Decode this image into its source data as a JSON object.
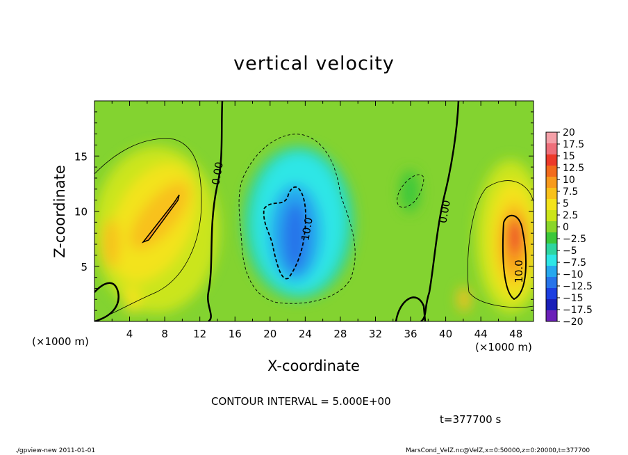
{
  "chart_data": {
    "type": "heatmap",
    "title": "vertical velocity",
    "xlabel": "X-coordinate",
    "ylabel": "Z-coordinate",
    "x_unit_left": "(×1000 m)",
    "x_unit_right": "(×1000 m)",
    "xlim": [
      0,
      50
    ],
    "ylim": [
      0,
      20
    ],
    "xticks": [
      4,
      8,
      12,
      16,
      20,
      24,
      28,
      32,
      36,
      40,
      44,
      48
    ],
    "yticks": [
      5,
      10,
      15
    ],
    "colorbar": {
      "levels": [
        20,
        17.5,
        15,
        12.5,
        10,
        7.5,
        5,
        2.5,
        0,
        -2.5,
        -5,
        -7.5,
        -10,
        -12.5,
        -15,
        -17.5,
        -20
      ],
      "labels": [
        "20",
        "17.5",
        "15",
        "12.5",
        "10",
        "7.5",
        "5",
        "2.5",
        "0",
        "−2.5",
        "−5",
        "−7.5",
        "−10",
        "−12.5",
        "−15",
        "−17.5",
        "−20"
      ],
      "colors": [
        "#f4a0a8",
        "#ee6f7a",
        "#ec3a2a",
        "#f26b1c",
        "#f79a1c",
        "#f8c11a",
        "#f3e31b",
        "#cbe51a",
        "#8ad62a",
        "#3cc83a",
        "#2ed5a0",
        "#2ee6e6",
        "#27a8ee",
        "#2774ea",
        "#1c3fe0",
        "#1a1fb8",
        "#6b20b8"
      ]
    },
    "contour_labels": [
      "0.00",
      "10.0",
      "0.00",
      "10.0"
    ],
    "features": [
      {
        "kind": "updraft",
        "x": [
          4,
          11
        ],
        "z": [
          6,
          12
        ],
        "peak": 10
      },
      {
        "kind": "downdraft",
        "x": [
          19,
          27
        ],
        "z": [
          3,
          12
        ],
        "peak": -12.5
      },
      {
        "kind": "updraft",
        "x": [
          45,
          49
        ],
        "z": [
          2,
          10
        ],
        "peak": 15
      },
      {
        "kind": "zero-contour",
        "x": [
          12,
          16
        ]
      },
      {
        "kind": "zero-contour",
        "x": [
          39,
          43
        ]
      }
    ]
  },
  "contour_interval": "CONTOUR INTERVAL = 5.000E+00",
  "time_label": "t=377700  s",
  "footer_left": "./gpview-new   2011-01-01",
  "footer_right": "MarsCond_VelZ.nc@VelZ,x=0:50000,z=0:20000,t=377700"
}
